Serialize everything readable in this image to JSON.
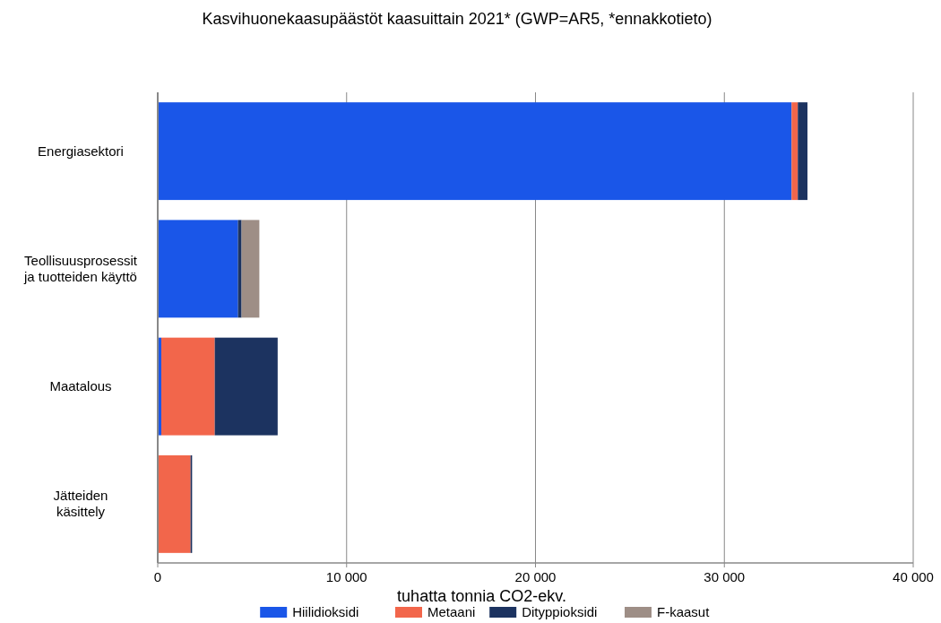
{
  "chart_data": {
    "type": "bar",
    "orientation": "horizontal",
    "stacked": true,
    "title": "Kasvihuonekaasupäästöt kaasuittain 2021* (GWP=AR5, *ennakkotieto)",
    "xlabel": "tuhatta tonnia CO2-ekv.",
    "categories": [
      "Energiasektori",
      "Teollisuusprosessit\nja tuotteiden käyttö",
      "Maatalous",
      "Jätteiden\nkäsittely"
    ],
    "series": [
      {
        "name": "Hiilidioksidi",
        "color": "#1a56e8",
        "values": [
          33560,
          4250,
          190,
          0
        ]
      },
      {
        "name": "Metaani",
        "color": "#f2664b",
        "values": [
          330,
          0,
          2830,
          1740
        ]
      },
      {
        "name": "Dityppioksidi",
        "color": "#1c3360",
        "values": [
          510,
          190,
          3330,
          80
        ]
      },
      {
        "name": "F-kaasut",
        "color": "#9e8e86",
        "values": [
          0,
          940,
          0,
          0
        ]
      }
    ],
    "xlim": [
      0,
      40000
    ],
    "xticks": [
      {
        "value": 0,
        "label": "0"
      },
      {
        "value": 10000,
        "label": "10 000"
      },
      {
        "value": 20000,
        "label": "20 000"
      },
      {
        "value": 30000,
        "label": "30 000"
      },
      {
        "value": 40000,
        "label": "40 000"
      }
    ],
    "grid": "x",
    "legend": "bottom"
  }
}
